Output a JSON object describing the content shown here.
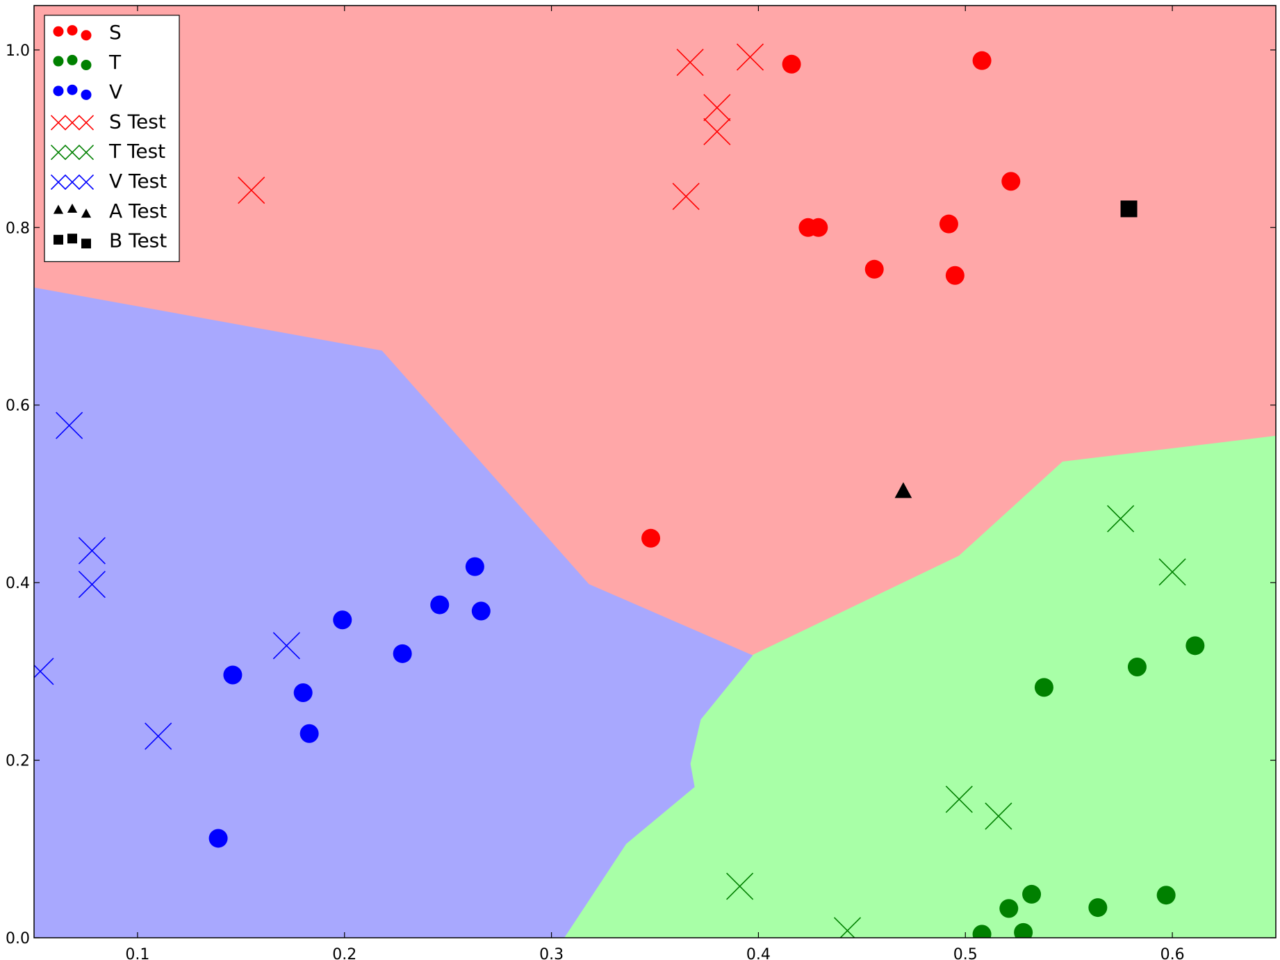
{
  "chart_data": {
    "type": "scatter",
    "title": "",
    "xlabel": "",
    "ylabel": "",
    "xlim": [
      0.05,
      0.65
    ],
    "ylim": [
      0.0,
      1.05
    ],
    "grid": false,
    "legend_position": "top-left",
    "x_ticks": [
      "0.1",
      "0.2",
      "0.3",
      "0.4",
      "0.5",
      "0.6"
    ],
    "x_tick_values": [
      0.1,
      0.2,
      0.3,
      0.4,
      0.5,
      0.6
    ],
    "y_ticks": [
      "0.0",
      "0.2",
      "0.4",
      "0.6",
      "0.8",
      "1.0"
    ],
    "y_tick_values": [
      0.0,
      0.2,
      0.4,
      0.6,
      0.8,
      1.0
    ],
    "regions": [
      {
        "class": "S",
        "color": "#ffa7a8",
        "polygon": [
          [
            0.05,
            1.05
          ],
          [
            0.65,
            1.05
          ],
          [
            0.65,
            0.565
          ],
          [
            0.547,
            0.536
          ],
          [
            0.497,
            0.43
          ],
          [
            0.397,
            0.318
          ],
          [
            0.318,
            0.398
          ],
          [
            0.218,
            0.661
          ],
          [
            0.05,
            0.732
          ]
        ]
      },
      {
        "class": "T",
        "color": "#a8ffa7",
        "polygon": [
          [
            0.65,
            0.0
          ],
          [
            0.65,
            0.565
          ],
          [
            0.547,
            0.536
          ],
          [
            0.497,
            0.43
          ],
          [
            0.397,
            0.318
          ],
          [
            0.372,
            0.246
          ],
          [
            0.367,
            0.196
          ],
          [
            0.369,
            0.17
          ],
          [
            0.336,
            0.106
          ],
          [
            0.306,
            0.0
          ]
        ]
      },
      {
        "class": "V",
        "color": "#a8a8fe",
        "polygon": [
          [
            0.05,
            0.0
          ],
          [
            0.306,
            0.0
          ],
          [
            0.336,
            0.106
          ],
          [
            0.369,
            0.17
          ],
          [
            0.367,
            0.196
          ],
          [
            0.372,
            0.246
          ],
          [
            0.397,
            0.318
          ],
          [
            0.318,
            0.398
          ],
          [
            0.218,
            0.661
          ],
          [
            0.05,
            0.732
          ]
        ]
      }
    ],
    "series": [
      {
        "name": "S",
        "marker": "circle",
        "color": "#ff0000",
        "points": [
          [
            0.416,
            0.984
          ],
          [
            0.508,
            0.988
          ],
          [
            0.424,
            0.8
          ],
          [
            0.429,
            0.8
          ],
          [
            0.492,
            0.804
          ],
          [
            0.522,
            0.852
          ],
          [
            0.456,
            0.753
          ],
          [
            0.495,
            0.746
          ],
          [
            0.348,
            0.45
          ]
        ]
      },
      {
        "name": "T",
        "marker": "circle",
        "color": "#008000",
        "points": [
          [
            0.611,
            0.329
          ],
          [
            0.583,
            0.305
          ],
          [
            0.538,
            0.282
          ],
          [
            0.532,
            0.049
          ],
          [
            0.521,
            0.033
          ],
          [
            0.528,
            0.006
          ],
          [
            0.508,
            0.004
          ],
          [
            0.564,
            0.034
          ],
          [
            0.597,
            0.048
          ]
        ]
      },
      {
        "name": "V",
        "marker": "circle",
        "color": "#0000ff",
        "points": [
          [
            0.263,
            0.418
          ],
          [
            0.246,
            0.375
          ],
          [
            0.266,
            0.368
          ],
          [
            0.199,
            0.358
          ],
          [
            0.228,
            0.32
          ],
          [
            0.146,
            0.296
          ],
          [
            0.18,
            0.276
          ],
          [
            0.183,
            0.23
          ],
          [
            0.139,
            0.112
          ]
        ]
      },
      {
        "name": "S Test",
        "marker": "x",
        "color": "#ff0000",
        "points": [
          [
            0.367,
            0.986
          ],
          [
            0.396,
            0.992
          ],
          [
            0.38,
            0.935
          ],
          [
            0.38,
            0.908
          ],
          [
            0.365,
            0.835
          ],
          [
            0.155,
            0.842
          ]
        ]
      },
      {
        "name": "T Test",
        "marker": "x",
        "color": "#008000",
        "points": [
          [
            0.575,
            0.472
          ],
          [
            0.6,
            0.412
          ],
          [
            0.497,
            0.156
          ],
          [
            0.516,
            0.137
          ],
          [
            0.391,
            0.058
          ],
          [
            0.443,
            0.008
          ]
        ]
      },
      {
        "name": "V Test",
        "marker": "x",
        "color": "#0000ff",
        "points": [
          [
            0.067,
            0.577
          ],
          [
            0.078,
            0.436
          ],
          [
            0.078,
            0.398
          ],
          [
            0.172,
            0.329
          ],
          [
            0.11,
            0.227
          ],
          [
            0.053,
            0.3
          ]
        ]
      },
      {
        "name": "A Test",
        "marker": "triangle",
        "color": "#000000",
        "points": [
          [
            0.47,
            0.503
          ]
        ]
      },
      {
        "name": "B Test",
        "marker": "square",
        "color": "#000000",
        "points": [
          [
            0.579,
            0.821
          ]
        ]
      }
    ]
  }
}
